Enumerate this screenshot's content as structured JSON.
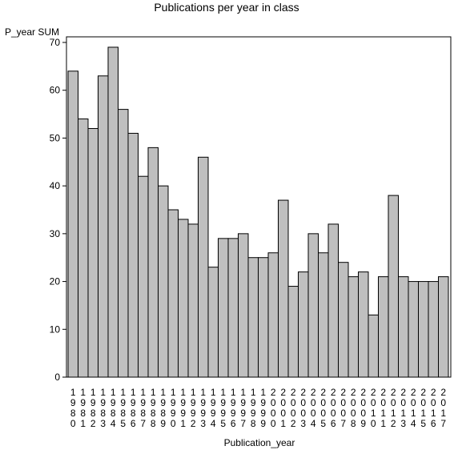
{
  "chart_data": {
    "type": "bar",
    "title": "Publications per year in class",
    "xlabel": "Publication_year",
    "ylabel": "P_year SUM",
    "ylim": [
      0,
      70
    ],
    "yticks": [
      0,
      10,
      20,
      30,
      40,
      50,
      60,
      70
    ],
    "categories": [
      "1980",
      "1981",
      "1982",
      "1983",
      "1984",
      "1985",
      "1986",
      "1987",
      "1988",
      "1989",
      "1990",
      "1991",
      "1992",
      "1993",
      "1994",
      "1995",
      "1996",
      "1997",
      "1998",
      "1999",
      "2000",
      "2001",
      "2002",
      "2003",
      "2004",
      "2005",
      "2006",
      "2007",
      "2008",
      "2009",
      "2010",
      "2011",
      "2012",
      "2013",
      "2014",
      "2015",
      "2016",
      "2017"
    ],
    "values": [
      64,
      54,
      52,
      63,
      69,
      56,
      51,
      42,
      48,
      40,
      35,
      33,
      32,
      46,
      23,
      29,
      29,
      30,
      25,
      25,
      26,
      37,
      19,
      22,
      30,
      26,
      32,
      24,
      21,
      22,
      13,
      21,
      38,
      21,
      20,
      20,
      20,
      21
    ],
    "bar_color": "#bfbfbf",
    "grid": false,
    "legend": "none"
  }
}
